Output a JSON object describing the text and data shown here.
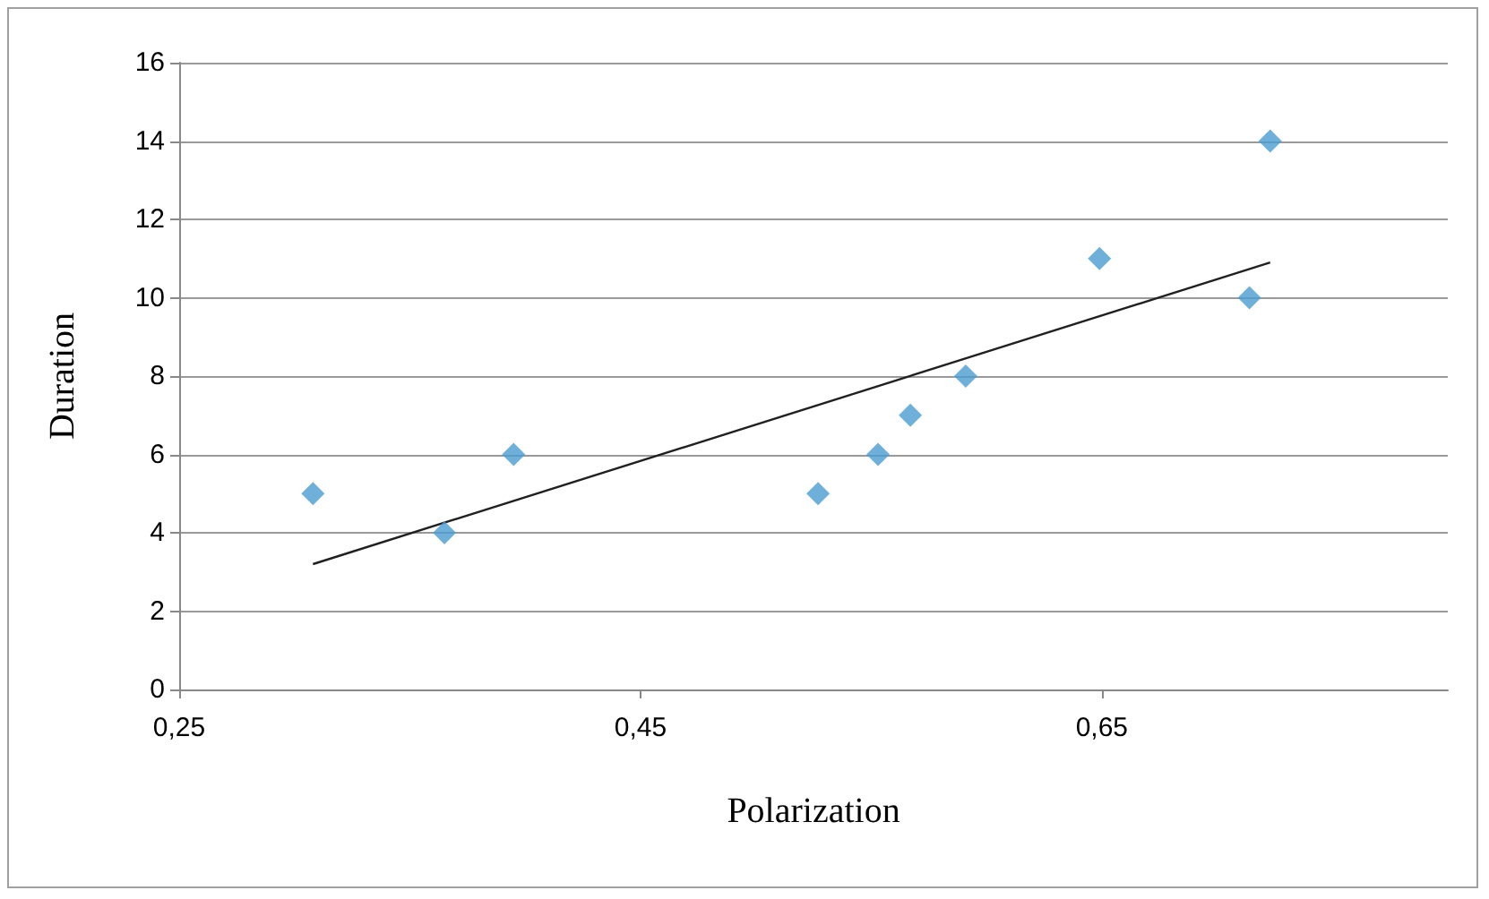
{
  "chart_data": {
    "type": "scatter",
    "xlabel": "Polarization",
    "ylabel": "Duration",
    "series": [
      {
        "color": "#4a9ccf",
        "x": [
          0.308,
          0.365,
          0.395,
          0.527,
          0.553,
          0.567,
          0.591,
          0.649,
          0.714,
          0.723
        ],
        "values": [
          5,
          4,
          6,
          5,
          6,
          7,
          8,
          11,
          10,
          14
        ]
      },
      {
        "type": "line",
        "color": "#202020",
        "x": [
          0.308,
          0.723
        ],
        "values": [
          3.2,
          10.9
        ],
        "marker": "none"
      }
    ],
    "xlim": [
      0.25,
      0.8
    ],
    "xticks": [
      {
        "value": 0.25,
        "label": "0,25"
      },
      {
        "value": 0.45,
        "label": "0,45"
      },
      {
        "value": 0.65,
        "label": "0,65"
      }
    ],
    "ylim": [
      0,
      16
    ],
    "yticks": [
      0,
      2,
      4,
      6,
      8,
      10,
      12,
      14,
      16
    ],
    "grid": "y",
    "marker": "diamond"
  }
}
